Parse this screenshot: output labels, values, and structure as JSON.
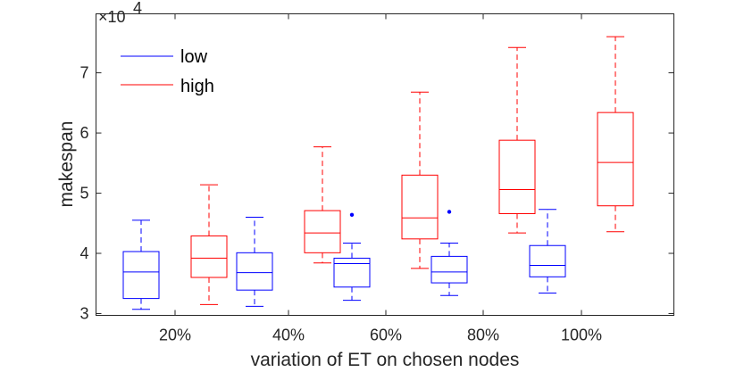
{
  "chart_data": {
    "type": "box",
    "xlabel": "variation of ET on chosen nodes",
    "ylabel": "makespan",
    "exponent_label": "×10",
    "exponent_power": "4",
    "categories": [
      "20%",
      "40%",
      "60%",
      "80%",
      "100%"
    ],
    "ylim": [
      2.97,
      7.98
    ],
    "yticks": [
      3,
      4,
      5,
      6,
      7
    ],
    "ytick_labels": [
      "3",
      "4",
      "5",
      "6",
      "7"
    ],
    "grid": false,
    "legend_position": "top-left",
    "series": [
      {
        "name": "low",
        "color": "#0000ff",
        "boxes": [
          {
            "min": 3.07,
            "q1": 3.25,
            "median": 3.69,
            "q3": 4.03,
            "max": 4.55,
            "outliers": []
          },
          {
            "min": 3.12,
            "q1": 3.39,
            "median": 3.68,
            "q3": 4.01,
            "max": 4.6,
            "outliers": []
          },
          {
            "min": 3.22,
            "q1": 3.44,
            "median": 3.83,
            "q3": 3.92,
            "max": 4.17,
            "outliers": [
              4.64
            ]
          },
          {
            "min": 3.3,
            "q1": 3.51,
            "median": 3.69,
            "q3": 3.95,
            "max": 4.17,
            "outliers": [
              4.69
            ]
          },
          {
            "min": 3.34,
            "q1": 3.61,
            "median": 3.8,
            "q3": 4.13,
            "max": 4.73,
            "outliers": []
          }
        ]
      },
      {
        "name": "high",
        "color": "#ff0000",
        "boxes": [
          {
            "min": 3.15,
            "q1": 3.6,
            "median": 3.92,
            "q3": 4.29,
            "max": 5.14,
            "outliers": []
          },
          {
            "min": 3.84,
            "q1": 4.01,
            "median": 4.34,
            "q3": 4.71,
            "max": 5.77,
            "outliers": []
          },
          {
            "min": 3.75,
            "q1": 4.24,
            "median": 4.59,
            "q3": 5.3,
            "max": 6.68,
            "outliers": []
          },
          {
            "min": 4.34,
            "q1": 4.66,
            "median": 5.06,
            "q3": 5.88,
            "max": 7.42,
            "outliers": []
          },
          {
            "min": 4.36,
            "q1": 4.79,
            "median": 5.51,
            "q3": 6.34,
            "max": 7.6,
            "outliers": []
          }
        ]
      }
    ]
  }
}
